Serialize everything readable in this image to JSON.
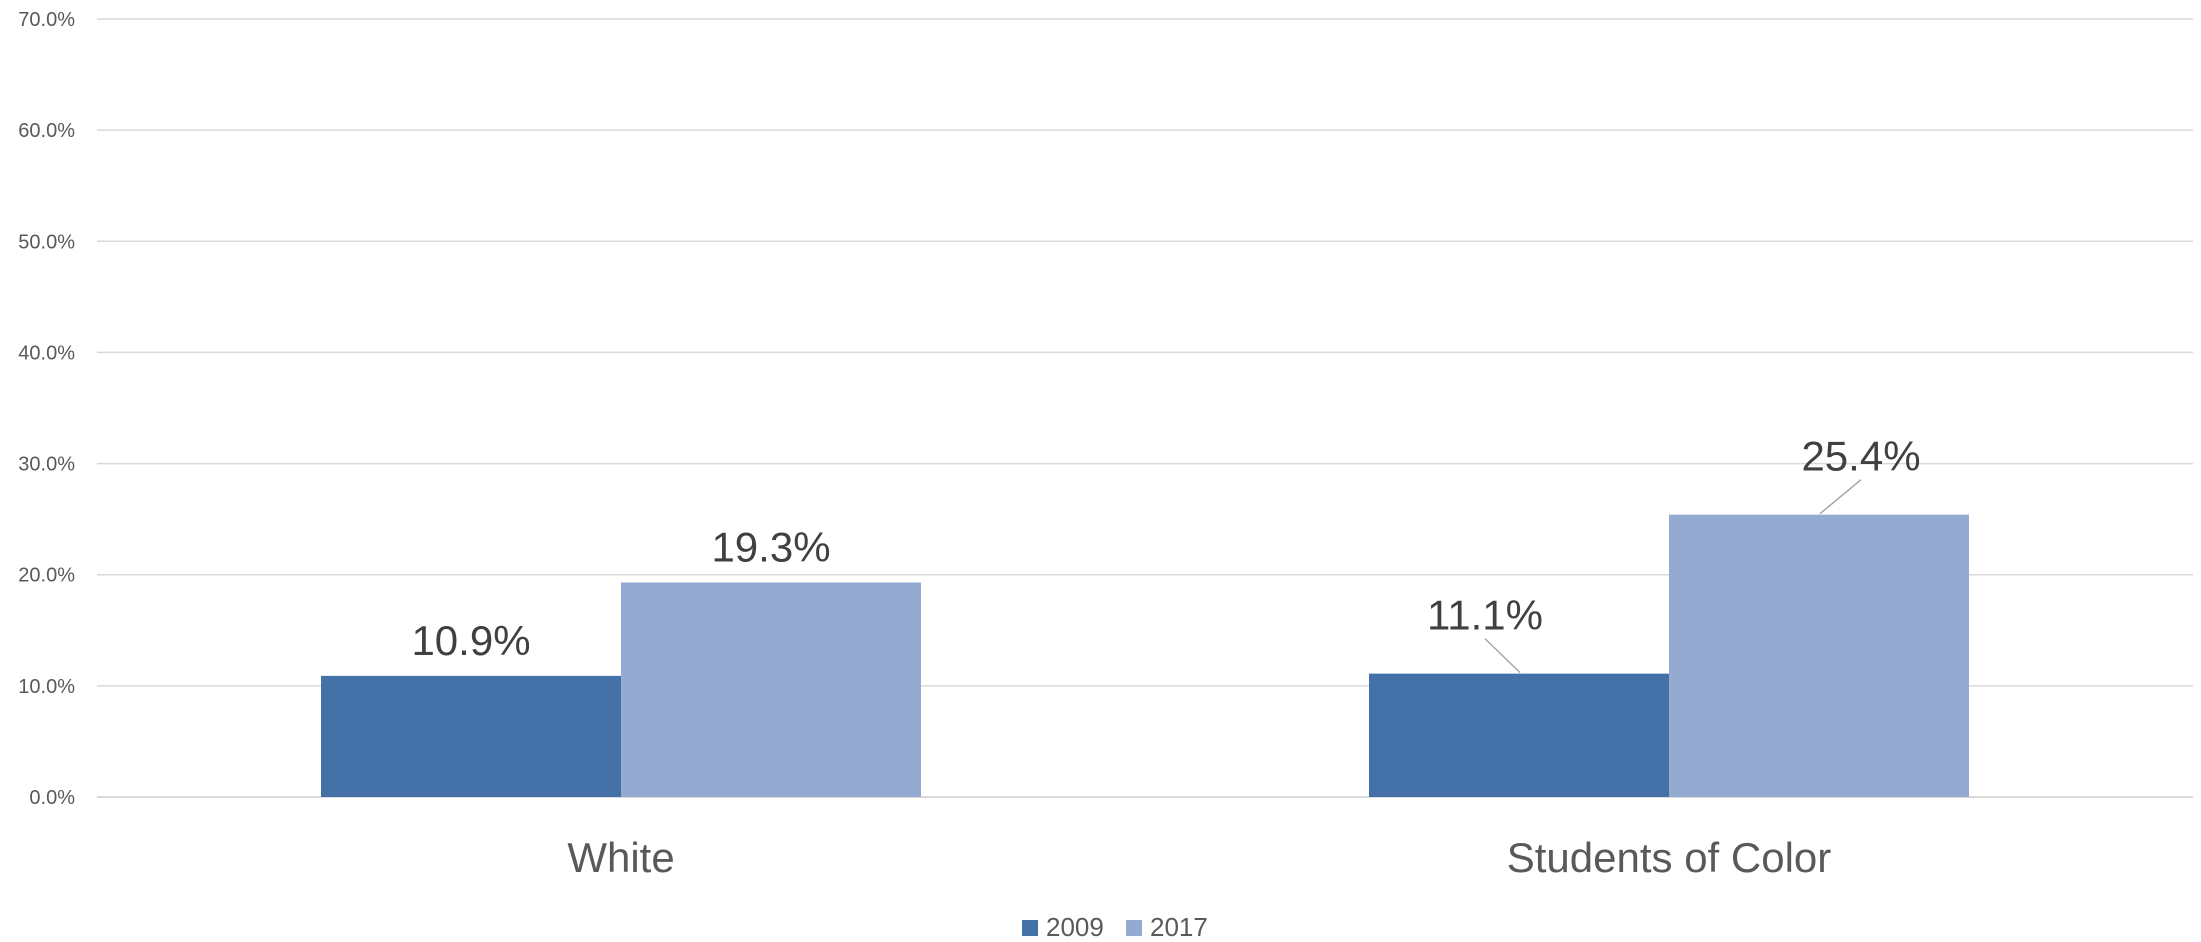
{
  "chart_data": {
    "type": "bar",
    "categories": [
      "White",
      "Students of Color"
    ],
    "series": [
      {
        "name": "2009",
        "values": [
          10.9,
          11.1
        ],
        "labels": [
          "10.9%",
          "11.1%"
        ],
        "color": "#4472a8"
      },
      {
        "name": "2017",
        "values": [
          19.3,
          25.4
        ],
        "labels": [
          "19.3%",
          "25.4%"
        ],
        "color": "#95aad1"
      }
    ],
    "ylim": [
      0,
      70
    ],
    "yticks": [
      "0.0%",
      "10.0%",
      "20.0%",
      "30.0%",
      "40.0%",
      "50.0%",
      "60.0%",
      "70.0%"
    ],
    "grid": true,
    "legend_position": "bottom"
  }
}
